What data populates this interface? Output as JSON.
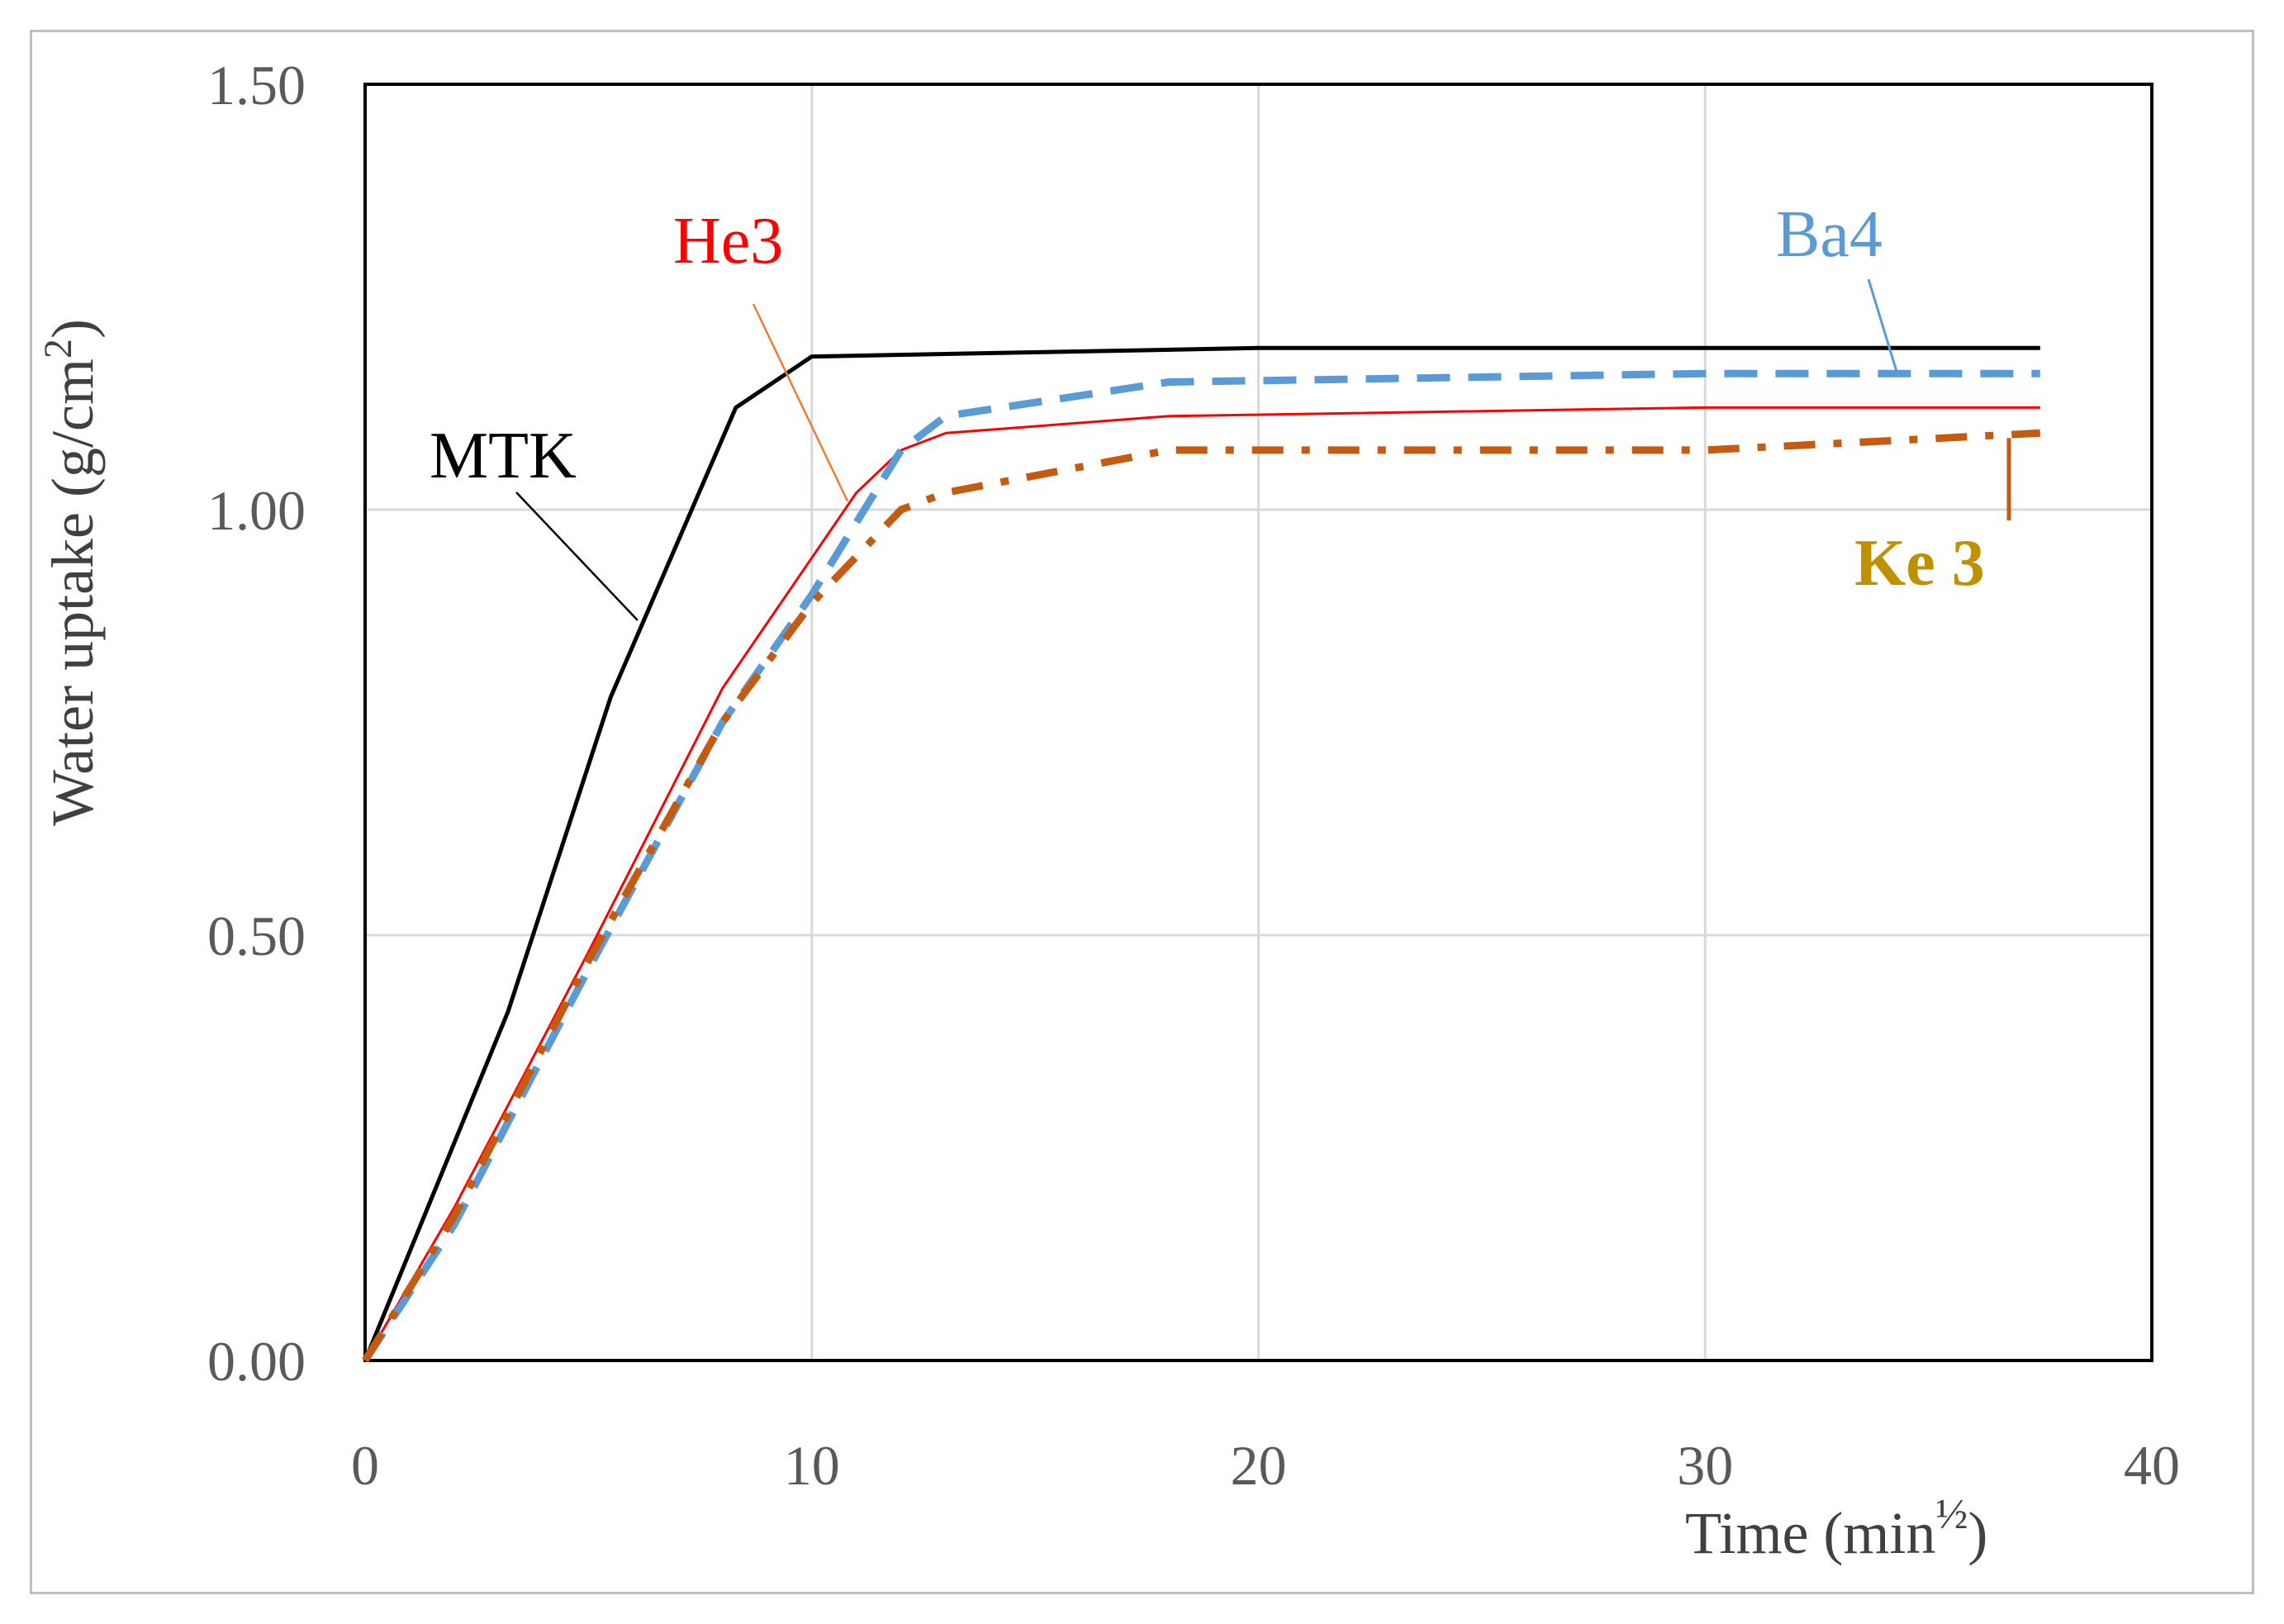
{
  "chart_data": {
    "type": "line",
    "title": "",
    "xlabel": "Time (min",
    "xlabel_superscript": "½",
    "xlabel_close": ")",
    "ylabel": "Water uptake (g/cm",
    "ylabel_superscript": "2",
    "ylabel_close": ")",
    "xlim": [
      0,
      40
    ],
    "ylim": [
      0,
      1.5
    ],
    "xticks": [
      0,
      10,
      20,
      30,
      40
    ],
    "yticks": [
      0,
      0.5,
      1.0,
      1.5
    ],
    "xtick_labels": [
      "0",
      "10",
      "20",
      "30",
      "40"
    ],
    "ytick_labels": [
      "0.00",
      "0.50",
      "1.00",
      "1.50"
    ],
    "grid": true,
    "series": [
      {
        "name": "MTK",
        "color": "#000000",
        "style": "solid",
        "points": [
          [
            0,
            0
          ],
          [
            3.2,
            0.41
          ],
          [
            5.5,
            0.78
          ],
          [
            8.3,
            1.12
          ],
          [
            10,
            1.18
          ],
          [
            20,
            1.19
          ],
          [
            30,
            1.19
          ],
          [
            37.5,
            1.19
          ]
        ]
      },
      {
        "name": "He3",
        "color": "#ff0000",
        "style": "solid-thin",
        "points": [
          [
            0,
            0
          ],
          [
            2,
            0.18
          ],
          [
            5,
            0.48
          ],
          [
            8,
            0.79
          ],
          [
            11,
            1.02
          ],
          [
            12,
            1.07
          ],
          [
            13,
            1.09
          ],
          [
            18,
            1.11
          ],
          [
            30,
            1.12
          ],
          [
            37.5,
            1.12
          ]
        ]
      },
      {
        "name": "Ba4",
        "color": "#5b9bd5",
        "style": "dash",
        "points": [
          [
            0,
            0
          ],
          [
            2,
            0.16
          ],
          [
            5,
            0.46
          ],
          [
            8,
            0.75
          ],
          [
            10,
            0.9
          ],
          [
            12,
            1.07
          ],
          [
            13,
            1.11
          ],
          [
            18,
            1.15
          ],
          [
            30,
            1.16
          ],
          [
            37.5,
            1.16
          ]
        ]
      },
      {
        "name": "Ke 3",
        "color": "#c55a11",
        "style": "dash-dot",
        "points": [
          [
            0,
            0
          ],
          [
            2,
            0.17
          ],
          [
            5,
            0.47
          ],
          [
            8,
            0.75
          ],
          [
            10,
            0.89
          ],
          [
            12,
            1.0
          ],
          [
            13,
            1.02
          ],
          [
            18,
            1.07
          ],
          [
            30,
            1.07
          ],
          [
            37.5,
            1.09
          ]
        ]
      }
    ],
    "annotations": {
      "mtk": {
        "text": "MTK",
        "color": "#000000"
      },
      "he3": {
        "text": "He3",
        "color": "#ff0000"
      },
      "ba4": {
        "text": "Ba4",
        "color": "#5b9bd5"
      },
      "ke3": {
        "text": "Ke 3",
        "color": "#bf9000"
      }
    }
  }
}
